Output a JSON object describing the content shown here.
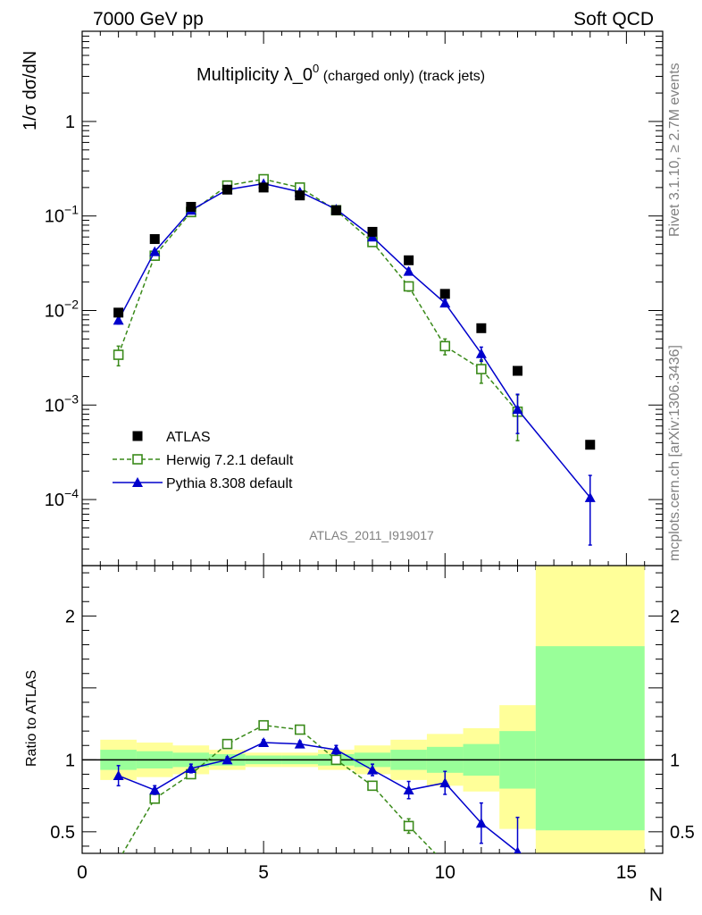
{
  "header": {
    "left": "7000 GeV pp",
    "right": "Soft QCD"
  },
  "side_text": {
    "top": "Rivet 3.1.10, ≥ 2.7M events",
    "bottom": "mcplots.cern.ch [arXiv:1306.3436]"
  },
  "watermark": "ATLAS_2011_I919017",
  "chart_data": [
    {
      "type": "scatter",
      "panel": "main",
      "title_main": "Multiplicity λ_0",
      "title_sup": "0",
      "title_sub": " (charged only) (track jets)",
      "ylabel": "1/σ dσ/dN",
      "yscale": "log",
      "ylim": [
        2e-05,
        9
      ],
      "xlim": [
        0,
        16
      ],
      "yticks": [
        {
          "v": 1,
          "base": "1",
          "exp": ""
        },
        {
          "v": 0.1,
          "base": "10",
          "exp": "−1"
        },
        {
          "v": 0.01,
          "base": "10",
          "exp": "−2"
        },
        {
          "v": 0.001,
          "base": "10",
          "exp": "−3"
        },
        {
          "v": 0.0001,
          "base": "10",
          "exp": "−4"
        }
      ],
      "legend_position": "lower-left",
      "series": [
        {
          "name": "ATLAS",
          "color": "#000000",
          "marker": "square-filled",
          "x": [
            1,
            2,
            3,
            4,
            5,
            6,
            7,
            8,
            9,
            10,
            11,
            12,
            14
          ],
          "y": [
            0.0095,
            0.057,
            0.125,
            0.19,
            0.2,
            0.165,
            0.115,
            0.068,
            0.034,
            0.015,
            0.0065,
            0.0023,
            0.00038
          ]
        },
        {
          "name": "Herwig 7.2.1 default",
          "color": "#3a8a1a",
          "marker": "square-open",
          "line": "dashed",
          "x": [
            1,
            2,
            3,
            4,
            5,
            6,
            7,
            8,
            9,
            10,
            11,
            12
          ],
          "y": [
            0.0034,
            0.038,
            0.11,
            0.21,
            0.245,
            0.2,
            0.115,
            0.053,
            0.018,
            0.0042,
            0.0024,
            0.00085
          ],
          "err_lo": [
            0.0026,
            0.034,
            0.105,
            0.205,
            0.24,
            0.195,
            0.11,
            0.05,
            0.016,
            0.0034,
            0.0017,
            0.00042
          ],
          "err_hi": [
            0.0042,
            0.042,
            0.115,
            0.215,
            0.25,
            0.205,
            0.12,
            0.056,
            0.02,
            0.005,
            0.003,
            0.00128
          ]
        },
        {
          "name": "Pythia 8.308 default",
          "color": "#0000cc",
          "marker": "triangle",
          "line": "solid",
          "x": [
            1,
            2,
            3,
            4,
            5,
            6,
            7,
            8,
            9,
            10,
            11,
            12,
            14
          ],
          "y": [
            0.0079,
            0.042,
            0.115,
            0.19,
            0.22,
            0.18,
            0.118,
            0.06,
            0.026,
            0.012,
            0.0035,
            0.0009,
            0.000105
          ],
          "err_lo": [
            0.0072,
            0.04,
            0.112,
            0.187,
            0.217,
            0.177,
            0.115,
            0.058,
            0.024,
            0.011,
            0.0029,
            0.0005,
            3.3e-05
          ],
          "err_hi": [
            0.0086,
            0.044,
            0.118,
            0.193,
            0.223,
            0.183,
            0.121,
            0.062,
            0.028,
            0.013,
            0.0041,
            0.0013,
            0.00018
          ]
        }
      ]
    },
    {
      "type": "scatter",
      "panel": "ratio",
      "ylabel": "Ratio to ATLAS",
      "xlabel": "N",
      "ylim": [
        0.35,
        2.35
      ],
      "xlim": [
        0,
        16
      ],
      "xticks": [
        0,
        5,
        10,
        15
      ],
      "yticks": [
        0.5,
        1,
        2
      ],
      "bands": {
        "edges": [
          0.5,
          1.5,
          2.5,
          3.5,
          4.5,
          5.5,
          6.5,
          7.5,
          8.5,
          9.5,
          10.5,
          11.5,
          12.5,
          15.5
        ],
        "green_lo": [
          0.93,
          0.94,
          0.95,
          0.96,
          0.97,
          0.97,
          0.96,
          0.95,
          0.93,
          0.91,
          0.89,
          0.8,
          0.51
        ],
        "green_hi": [
          1.07,
          1.06,
          1.05,
          1.04,
          1.03,
          1.03,
          1.04,
          1.05,
          1.07,
          1.09,
          1.11,
          1.2,
          1.79
        ],
        "yellow_lo": [
          0.86,
          0.88,
          0.9,
          0.93,
          0.95,
          0.95,
          0.93,
          0.9,
          0.86,
          0.82,
          0.78,
          0.52,
          0.35
        ],
        "yellow_hi": [
          1.14,
          1.12,
          1.1,
          1.07,
          1.05,
          1.05,
          1.07,
          1.1,
          1.14,
          1.18,
          1.22,
          1.38,
          2.35
        ]
      },
      "series": [
        {
          "name": "Herwig 7.2.1 default",
          "color": "#3a8a1a",
          "marker": "square-open",
          "line": "dashed",
          "x": [
            1,
            2,
            3,
            4,
            5,
            6,
            7,
            8,
            9,
            10
          ],
          "y": [
            0.3,
            0.73,
            0.9,
            1.11,
            1.24,
            1.21,
            1.0,
            0.82,
            0.54,
            0.28
          ],
          "err_lo": [
            0.3,
            0.71,
            0.88,
            1.1,
            1.23,
            1.2,
            0.98,
            0.79,
            0.49,
            0.28
          ],
          "err_hi": [
            0.3,
            0.75,
            0.92,
            1.12,
            1.25,
            1.22,
            1.02,
            0.85,
            0.59,
            0.28
          ]
        },
        {
          "name": "Pythia 8.308 default",
          "color": "#0000cc",
          "marker": "triangle",
          "line": "solid",
          "x": [
            1,
            2,
            3,
            4,
            5,
            6,
            7,
            8,
            9,
            10,
            11,
            12
          ],
          "y": [
            0.89,
            0.79,
            0.94,
            1.0,
            1.12,
            1.11,
            1.07,
            0.93,
            0.79,
            0.84,
            0.56,
            0.36
          ],
          "err_lo": [
            0.82,
            0.76,
            0.91,
            0.98,
            1.1,
            1.09,
            1.04,
            0.89,
            0.73,
            0.76,
            0.42,
            0.2
          ],
          "err_hi": [
            0.96,
            0.82,
            0.97,
            1.02,
            1.14,
            1.13,
            1.1,
            0.97,
            0.85,
            0.92,
            0.7,
            0.6
          ]
        }
      ]
    }
  ]
}
